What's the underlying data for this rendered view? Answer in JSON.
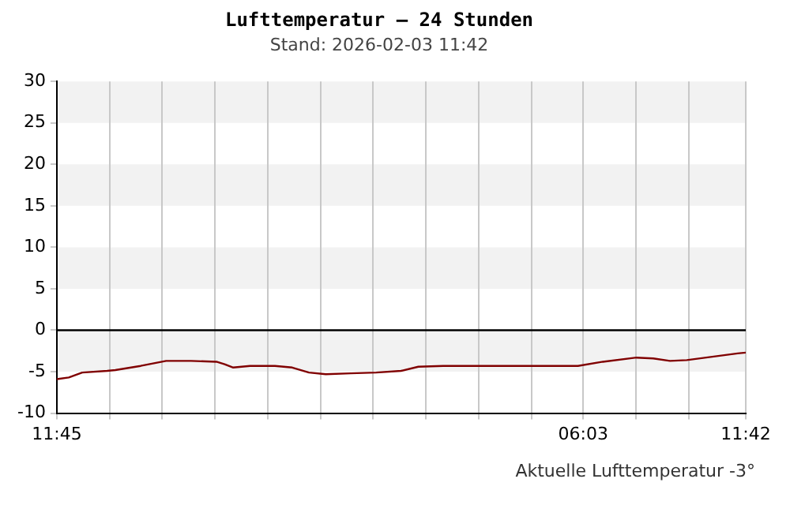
{
  "chart_data": {
    "type": "line",
    "title": "Lufttemperatur – 24 Stunden",
    "subtitle": "Stand: 2026-02-03 11:42",
    "x": [
      "2026-02-02T11:45",
      "2026-02-02T12:10",
      "2026-02-02T12:38",
      "2026-02-02T13:30",
      "2026-02-02T13:47",
      "2026-02-02T14:40",
      "2026-02-02T15:33",
      "2026-02-02T16:25",
      "2026-02-02T17:18",
      "2026-02-02T17:35",
      "2026-02-02T17:53",
      "2026-02-02T18:28",
      "2026-02-02T19:20",
      "2026-02-02T19:56",
      "2026-02-02T20:31",
      "2026-02-02T21:06",
      "2026-02-02T21:58",
      "2026-02-02T22:51",
      "2026-02-02T23:43",
      "2026-02-03T00:19",
      "2026-02-03T01:11",
      "2026-02-03T02:21",
      "2026-02-03T03:31",
      "2026-02-03T04:41",
      "2026-02-03T05:52",
      "2026-02-03T06:44",
      "2026-02-03T07:54",
      "2026-02-03T08:29",
      "2026-02-03T09:04",
      "2026-02-03T09:39",
      "2026-02-03T10:32",
      "2026-02-03T11:25",
      "2026-02-03T11:42"
    ],
    "series": [
      {
        "color": "#800000",
        "values": [
          -5.9,
          -5.7,
          -5.1,
          -4.9,
          -4.8,
          -4.3,
          -3.7,
          -3.7,
          -3.8,
          -4.1,
          -4.5,
          -4.3,
          -4.3,
          -4.5,
          -5.1,
          -5.3,
          -5.2,
          -5.1,
          -4.9,
          -4.4,
          -4.3,
          -4.3,
          -4.3,
          -4.3,
          -4.3,
          -3.8,
          -3.3,
          -3.4,
          -3.7,
          -3.6,
          -3.2,
          -2.8,
          -2.7
        ]
      }
    ],
    "xlim": [
      "2026-02-02T11:45",
      "2026-02-03T11:42"
    ],
    "xticks": [
      {
        "value": "2026-02-02T11:45",
        "label": "11:45"
      },
      {
        "value": "2026-02-02T13:35",
        "label": null
      },
      {
        "value": "2026-02-02T15:25",
        "label": null
      },
      {
        "value": "2026-02-02T17:15",
        "label": null
      },
      {
        "value": "2026-02-02T19:05",
        "label": null
      },
      {
        "value": "2026-02-02T20:55",
        "label": null
      },
      {
        "value": "2026-02-02T22:45",
        "label": null
      },
      {
        "value": "2026-02-03T00:35",
        "label": null
      },
      {
        "value": "2026-02-03T02:25",
        "label": null
      },
      {
        "value": "2026-02-03T04:15",
        "label": null
      },
      {
        "value": "2026-02-03T06:03",
        "label": "06:03"
      },
      {
        "value": "2026-02-03T07:53",
        "label": null
      },
      {
        "value": "2026-02-03T09:43",
        "label": null
      },
      {
        "value": "2026-02-03T11:42",
        "label": "11:42"
      }
    ],
    "ylim": [
      -10,
      30
    ],
    "yticks": [
      -10,
      -5,
      0,
      5,
      10,
      15,
      20,
      25,
      30
    ],
    "ref_lines": [
      {
        "axis": "y",
        "value": 0,
        "color": "#000000"
      }
    ],
    "annotations": [
      "Aktuelle Lufttemperatur -3°"
    ],
    "grid": "x",
    "legend": false,
    "marker": "none",
    "line_style": "solid"
  }
}
